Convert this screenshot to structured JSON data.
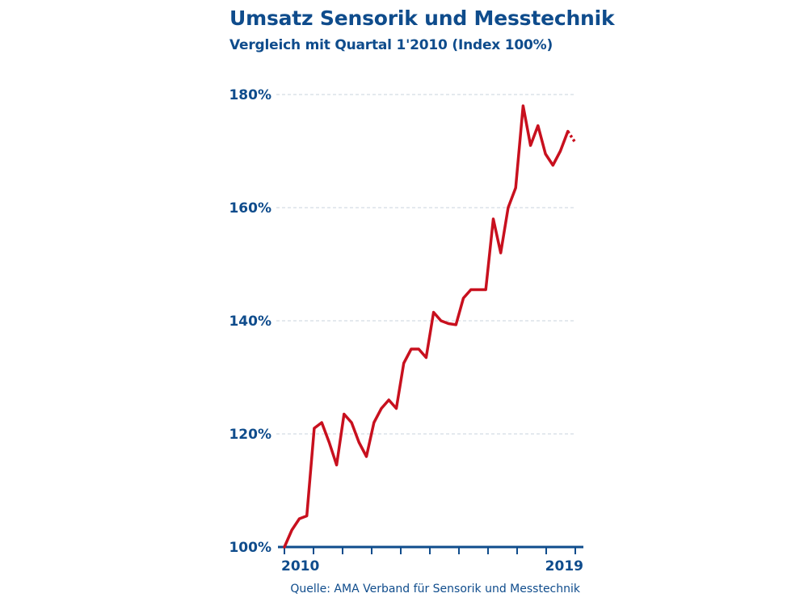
{
  "title": "Umsatz Sensorik und Messtechnik",
  "subtitle": "Vergleich mit Quartal 1'2010 (Index 100%)",
  "source": "Quelle: AMA Verband für Sensorik und Messtechnik",
  "colors": {
    "text": "#0f4c8c",
    "line": "#c8101e",
    "grid": "#c9d3de",
    "axis": "#0f4c8c"
  },
  "chart_data": {
    "type": "line",
    "title": "Umsatz Sensorik und Messtechnik",
    "subtitle": "Vergleich mit Quartal 1'2010 (Index 100%)",
    "xlabel": "",
    "ylabel": "",
    "x_tick_labels": [
      "2010",
      "2019"
    ],
    "y_tick_labels": [
      "100%",
      "120%",
      "140%",
      "160%",
      "180%"
    ],
    "y_ticks": [
      100,
      120,
      140,
      160,
      180
    ],
    "ylim": [
      100,
      180
    ],
    "grid": true,
    "series": [
      {
        "values": [
          100.0,
          103.0,
          105.0,
          105.5,
          121.0,
          122.0,
          118.5,
          114.5,
          123.5,
          122.0,
          118.5,
          116.0,
          122.0,
          124.5,
          126.0,
          124.5,
          132.5,
          135.0,
          135.0,
          133.5,
          141.5,
          140.0,
          139.5,
          139.3,
          144.0,
          145.5,
          145.5,
          145.5,
          158.0,
          152.0,
          160.0,
          163.5,
          178.0,
          171.0,
          174.5,
          169.5,
          167.5,
          170.0,
          173.5,
          171.5
        ],
        "dashed_last_segment": true
      }
    ]
  }
}
